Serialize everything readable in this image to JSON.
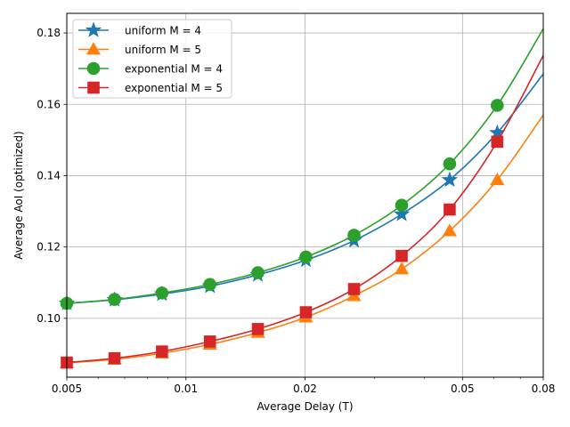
{
  "chart_data": {
    "type": "line",
    "xlabel": "Average Delay (T)",
    "ylabel": "Average AoI (optimized)",
    "x_scale": "log",
    "xlim": [
      0.005,
      0.08
    ],
    "ylim": [
      0.0835,
      0.1855
    ],
    "x_ticks": [
      0.005,
      0.01,
      0.02,
      0.05,
      0.08
    ],
    "x_tick_labels": [
      "0.005",
      "0.01",
      "0.02",
      "0.05",
      "0.08"
    ],
    "y_ticks": [
      0.1,
      0.12,
      0.14,
      0.16,
      0.18
    ],
    "y_tick_labels": [
      "0.10",
      "0.12",
      "0.14",
      "0.16",
      "0.18"
    ],
    "grid": true,
    "legend_position": "top-left",
    "series": [
      {
        "name": "uniform M = 4",
        "color": "#1f77b4",
        "marker": "star",
        "x": [
          0.005,
          0.0066,
          0.0087,
          0.0115,
          0.0152,
          0.0201,
          0.0266,
          0.0351,
          0.0464,
          0.0612,
          0.08
        ],
        "y": [
          0.1042,
          0.1052,
          0.1068,
          0.109,
          0.1122,
          0.1163,
          0.1218,
          0.1292,
          0.1388,
          0.152,
          0.1685
        ]
      },
      {
        "name": "uniform M = 5",
        "color": "#ff7f0e",
        "marker": "triangle",
        "x": [
          0.005,
          0.0066,
          0.0087,
          0.0115,
          0.0152,
          0.0201,
          0.0266,
          0.0351,
          0.0464,
          0.0612,
          0.08
        ],
        "y": [
          0.0875,
          0.0885,
          0.0902,
          0.0927,
          0.096,
          0.1003,
          0.1063,
          0.1138,
          0.1245,
          0.1388,
          0.157
        ]
      },
      {
        "name": "exponential M = 4",
        "color": "#2ca02c",
        "marker": "circle",
        "x": [
          0.005,
          0.0066,
          0.0087,
          0.0115,
          0.0152,
          0.0201,
          0.0266,
          0.0351,
          0.0464,
          0.0612,
          0.08
        ],
        "y": [
          0.1042,
          0.1053,
          0.1071,
          0.1095,
          0.1128,
          0.1172,
          0.1233,
          0.1317,
          0.1433,
          0.1597,
          0.1812
        ]
      },
      {
        "name": "exponential M = 5",
        "color": "#d62728",
        "marker": "square",
        "x": [
          0.005,
          0.0066,
          0.0087,
          0.0115,
          0.0152,
          0.0201,
          0.0266,
          0.0351,
          0.0464,
          0.0612,
          0.08
        ],
        "y": [
          0.0876,
          0.0888,
          0.0907,
          0.0935,
          0.097,
          0.1017,
          0.1082,
          0.1175,
          0.1305,
          0.1495,
          0.1737
        ]
      }
    ]
  }
}
